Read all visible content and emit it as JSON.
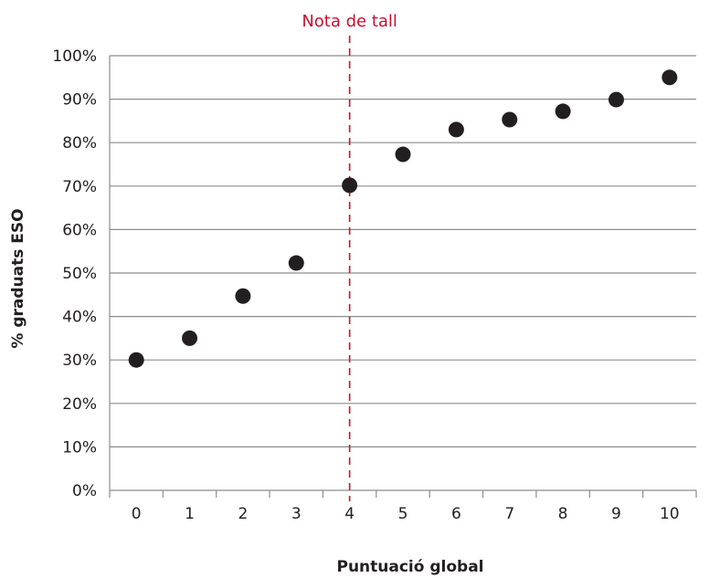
{
  "chart_data": {
    "type": "scatter",
    "title": "",
    "xlabel": "Puntuació global",
    "ylabel": "% graduats ESO",
    "x": [
      0,
      1,
      2,
      3,
      4,
      5,
      6,
      7,
      8,
      9,
      10
    ],
    "values": [
      30,
      35,
      44.7,
      52.3,
      70.2,
      77.3,
      83,
      85.3,
      87.2,
      89.9,
      95
    ],
    "xlim": [
      -0.5,
      10.5
    ],
    "ylim": [
      0,
      100
    ],
    "ytick_labels": [
      "0%",
      "10%",
      "20%",
      "30%",
      "40%",
      "50%",
      "60%",
      "70%",
      "80%",
      "90%",
      "100%"
    ],
    "xtick_labels": [
      "0",
      "1",
      "2",
      "3",
      "4",
      "5",
      "6",
      "7",
      "8",
      "9",
      "10"
    ],
    "grid": "horizontal",
    "marker_color": "#231f20",
    "annotation": {
      "label": "Nota de tall",
      "x": 4,
      "color": "#c8102e",
      "style": "dashed vertical line"
    }
  }
}
